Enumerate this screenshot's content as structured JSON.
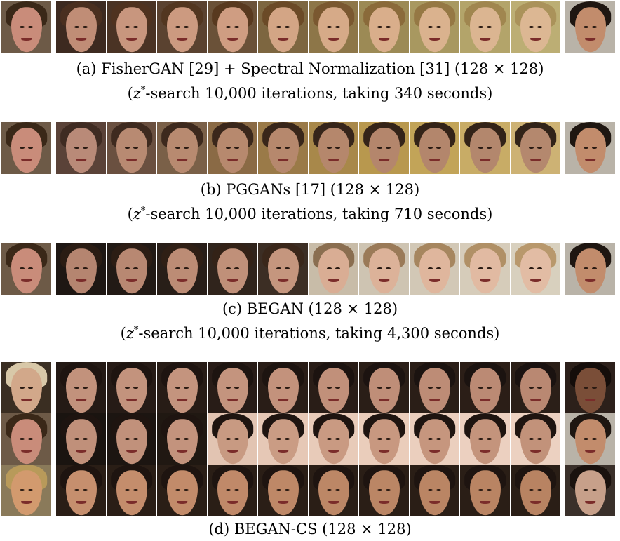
{
  "groups": [
    {
      "caption_line1": "(a) FisherGAN [29] + Spectral Normalization [31] (128 × 128)",
      "caption_line2_var": "z",
      "caption_line2_sup": "*",
      "caption_line2_rest": "-search 10,000 iterations, taking 340 seconds)",
      "caption_line2_open": "("
    },
    {
      "caption_line1": "(b) PGGANs [17] (128 × 128)",
      "caption_line2_var": "z",
      "caption_line2_sup": "*",
      "caption_line2_rest": "-search 10,000 iterations, taking 710 seconds)",
      "caption_line2_open": "("
    },
    {
      "caption_line1": "(c) BEGAN (128 × 128)",
      "caption_line2_var": "z",
      "caption_line2_sup": "*",
      "caption_line2_rest": "-search 10,000 iterations, taking 4,300 seconds)",
      "caption_line2_open": "("
    },
    {
      "caption_line1": "(d) BEGAN-CS (128 × 128)"
    }
  ]
}
